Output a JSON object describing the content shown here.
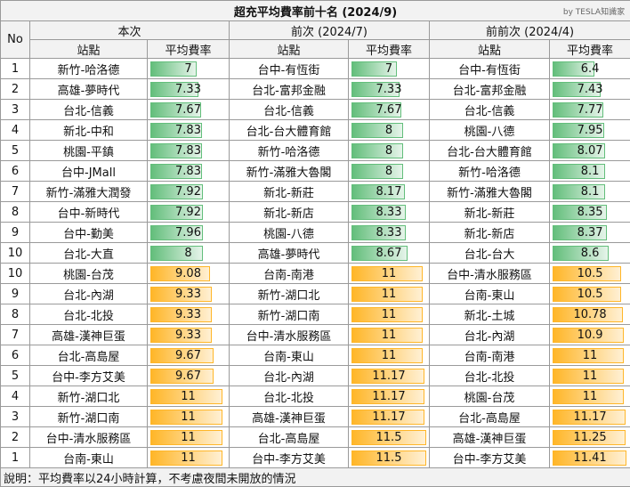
{
  "title": "超充平均費率前十名 (2024/9)",
  "credit": "by TESLA知識家",
  "no_header": "No",
  "periods": [
    "本次",
    "前次 (2024/7)",
    "前前次 (2024/4)"
  ],
  "col_station": "站點",
  "col_rate": "平均費率",
  "colors": {
    "low_bar": "#63be7b",
    "high_bar": "#ffb628"
  },
  "chart_data": {
    "type": "table",
    "rate_scale_max": 11.5,
    "rows": [
      {
        "no": "1",
        "band": "low",
        "cells": [
          {
            "s": "新竹-哈洛德",
            "r": 7
          },
          {
            "s": "台中-有恆街",
            "r": 7
          },
          {
            "s": "台中-有恆街",
            "r": 6.4
          }
        ]
      },
      {
        "no": "2",
        "band": "low",
        "cells": [
          {
            "s": "高雄-夢時代",
            "r": 7.33
          },
          {
            "s": "台北-富邦金融",
            "r": 7.33
          },
          {
            "s": "台北-富邦金融",
            "r": 7.43
          }
        ]
      },
      {
        "no": "3",
        "band": "low",
        "cells": [
          {
            "s": "台北-信義",
            "r": 7.67
          },
          {
            "s": "台北-信義",
            "r": 7.67
          },
          {
            "s": "台北-信義",
            "r": 7.77
          }
        ]
      },
      {
        "no": "4",
        "band": "low",
        "cells": [
          {
            "s": "新北-中和",
            "r": 7.83
          },
          {
            "s": "台北-台大體育館",
            "r": 8
          },
          {
            "s": "桃園-八德",
            "r": 7.95
          }
        ]
      },
      {
        "no": "5",
        "band": "low",
        "cells": [
          {
            "s": "桃園-平鎮",
            "r": 7.83
          },
          {
            "s": "新竹-哈洛德",
            "r": 8
          },
          {
            "s": "台北-台大體育館",
            "r": 8.07
          }
        ]
      },
      {
        "no": "6",
        "band": "low",
        "cells": [
          {
            "s": "台中-JMall",
            "r": 7.83
          },
          {
            "s": "新竹-滿雅大魯閣",
            "r": 8
          },
          {
            "s": "新竹-哈洛德",
            "r": 8.1
          }
        ]
      },
      {
        "no": "7",
        "band": "low",
        "cells": [
          {
            "s": "新竹-滿雅大潤發",
            "r": 7.92
          },
          {
            "s": "新北-新莊",
            "r": 8.17
          },
          {
            "s": "新竹-滿雅大魯閣",
            "r": 8.1
          }
        ]
      },
      {
        "no": "8",
        "band": "low",
        "cells": [
          {
            "s": "台中-新時代",
            "r": 7.92
          },
          {
            "s": "新北-新店",
            "r": 8.33
          },
          {
            "s": "新北-新莊",
            "r": 8.35
          }
        ]
      },
      {
        "no": "9",
        "band": "low",
        "cells": [
          {
            "s": "台中-勤美",
            "r": 7.96
          },
          {
            "s": "桃園-八德",
            "r": 8.33
          },
          {
            "s": "新北-新店",
            "r": 8.37
          }
        ]
      },
      {
        "no": "10",
        "band": "low",
        "cells": [
          {
            "s": "台北-大直",
            "r": 8
          },
          {
            "s": "高雄-夢時代",
            "r": 8.67
          },
          {
            "s": "台北-台大",
            "r": 8.6
          }
        ]
      },
      {
        "no": "10",
        "band": "high",
        "cells": [
          {
            "s": "桃園-台茂",
            "r": 9.08
          },
          {
            "s": "台南-南港",
            "r": 11
          },
          {
            "s": "台中-清水服務區",
            "r": 10.5
          }
        ]
      },
      {
        "no": "9",
        "band": "high",
        "cells": [
          {
            "s": "台北-內湖",
            "r": 9.33
          },
          {
            "s": "新竹-湖口北",
            "r": 11
          },
          {
            "s": "台南-東山",
            "r": 10.5
          }
        ]
      },
      {
        "no": "8",
        "band": "high",
        "cells": [
          {
            "s": "台北-北投",
            "r": 9.33
          },
          {
            "s": "新竹-湖口南",
            "r": 11
          },
          {
            "s": "新北-土城",
            "r": 10.78
          }
        ]
      },
      {
        "no": "7",
        "band": "high",
        "cells": [
          {
            "s": "高雄-漢神巨蛋",
            "r": 9.33
          },
          {
            "s": "台中-清水服務區",
            "r": 11
          },
          {
            "s": "台北-內湖",
            "r": 10.9
          }
        ]
      },
      {
        "no": "6",
        "band": "high",
        "cells": [
          {
            "s": "台北-高島屋",
            "r": 9.67
          },
          {
            "s": "台南-東山",
            "r": 11
          },
          {
            "s": "台南-南港",
            "r": 11
          }
        ]
      },
      {
        "no": "5",
        "band": "high",
        "cells": [
          {
            "s": "台中-李方艾美",
            "r": 9.67
          },
          {
            "s": "台北-內湖",
            "r": 11.17
          },
          {
            "s": "台北-北投",
            "r": 11
          }
        ]
      },
      {
        "no": "4",
        "band": "high",
        "cells": [
          {
            "s": "新竹-湖口北",
            "r": 11
          },
          {
            "s": "台北-北投",
            "r": 11.17
          },
          {
            "s": "桃園-台茂",
            "r": 11
          }
        ]
      },
      {
        "no": "3",
        "band": "high",
        "cells": [
          {
            "s": "新竹-湖口南",
            "r": 11
          },
          {
            "s": "高雄-漢神巨蛋",
            "r": 11.17
          },
          {
            "s": "台北-高島屋",
            "r": 11.17
          }
        ]
      },
      {
        "no": "2",
        "band": "high",
        "cells": [
          {
            "s": "台中-清水服務區",
            "r": 11
          },
          {
            "s": "台北-高島屋",
            "r": 11.5
          },
          {
            "s": "高雄-漢神巨蛋",
            "r": 11.25
          }
        ]
      },
      {
        "no": "1",
        "band": "high",
        "cells": [
          {
            "s": "台南-東山",
            "r": 11
          },
          {
            "s": "台中-李方艾美",
            "r": 11.5
          },
          {
            "s": "台中-李方艾美",
            "r": 11.41
          }
        ]
      }
    ]
  },
  "note": "說明：平均費率以24小時計算，不考慮夜間未開放的情況"
}
